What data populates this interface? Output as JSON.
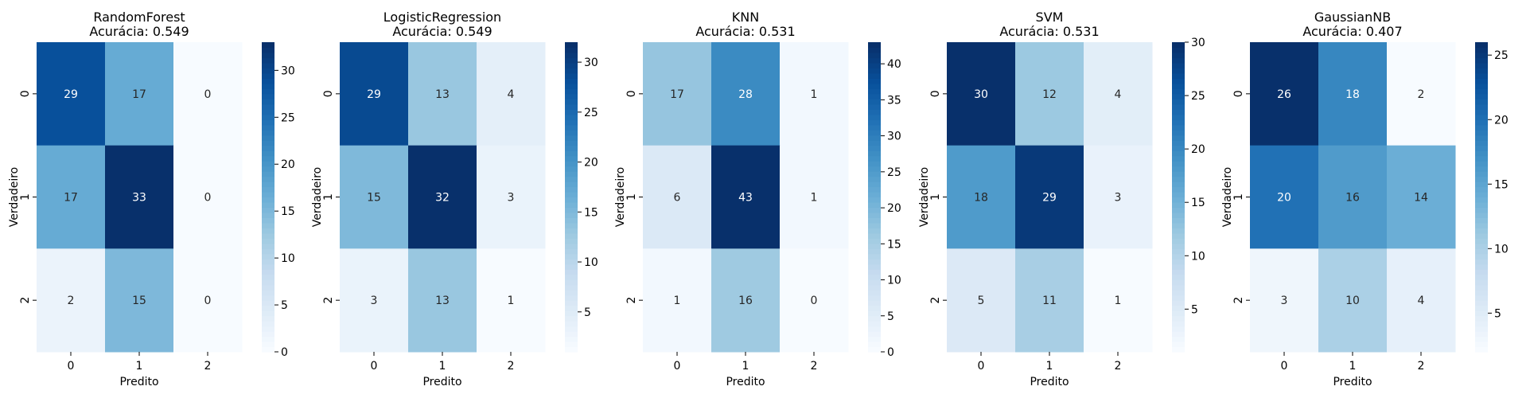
{
  "chart_data": [
    {
      "type": "heatmap",
      "title_line1": "RandomForest",
      "title_line2": "Acurácia: 0.549",
      "xlabel": "Predito",
      "ylabel": "Verdadeiro",
      "x_categories": [
        "0",
        "1",
        "2"
      ],
      "y_categories": [
        "0",
        "1",
        "2"
      ],
      "values": [
        [
          29,
          17,
          0
        ],
        [
          17,
          33,
          0
        ],
        [
          2,
          15,
          0
        ]
      ],
      "vmin": 0,
      "vmax": 33,
      "colorbar_ticks": [
        0,
        5,
        10,
        15,
        20,
        25,
        30
      ]
    },
    {
      "type": "heatmap",
      "title_line1": "LogisticRegression",
      "title_line2": "Acurácia: 0.549",
      "xlabel": "Predito",
      "ylabel": "Verdadeiro",
      "x_categories": [
        "0",
        "1",
        "2"
      ],
      "y_categories": [
        "0",
        "1",
        "2"
      ],
      "values": [
        [
          29,
          13,
          4
        ],
        [
          15,
          32,
          3
        ],
        [
          3,
          13,
          1
        ]
      ],
      "vmin": 1,
      "vmax": 32,
      "colorbar_ticks": [
        5,
        10,
        15,
        20,
        25,
        30
      ]
    },
    {
      "type": "heatmap",
      "title_line1": "KNN",
      "title_line2": "Acurácia: 0.531",
      "xlabel": "Predito",
      "ylabel": "Verdadeiro",
      "x_categories": [
        "0",
        "1",
        "2"
      ],
      "y_categories": [
        "0",
        "1",
        "2"
      ],
      "values": [
        [
          17,
          28,
          1
        ],
        [
          6,
          43,
          1
        ],
        [
          1,
          16,
          0
        ]
      ],
      "vmin": 0,
      "vmax": 43,
      "colorbar_ticks": [
        0,
        5,
        10,
        15,
        20,
        25,
        30,
        35,
        40
      ]
    },
    {
      "type": "heatmap",
      "title_line1": "SVM",
      "title_line2": "Acurácia: 0.531",
      "xlabel": "Predito",
      "ylabel": "Verdadeiro",
      "x_categories": [
        "0",
        "1",
        "2"
      ],
      "y_categories": [
        "0",
        "1",
        "2"
      ],
      "values": [
        [
          30,
          12,
          4
        ],
        [
          18,
          29,
          3
        ],
        [
          5,
          11,
          1
        ]
      ],
      "vmin": 1,
      "vmax": 30,
      "colorbar_ticks": [
        5,
        10,
        15,
        20,
        25,
        30
      ]
    },
    {
      "type": "heatmap",
      "title_line1": "GaussianNB",
      "title_line2": "Acurácia: 0.407",
      "xlabel": "Predito",
      "ylabel": "Verdadeiro",
      "x_categories": [
        "0",
        "1",
        "2"
      ],
      "y_categories": [
        "0",
        "1",
        "2"
      ],
      "values": [
        [
          26,
          18,
          2
        ],
        [
          20,
          16,
          14
        ],
        [
          3,
          10,
          4
        ]
      ],
      "vmin": 2,
      "vmax": 26,
      "colorbar_ticks": [
        5,
        10,
        15,
        20,
        25
      ]
    }
  ],
  "colormap": "Blues",
  "colormap_stops": [
    "#f7fbff",
    "#deebf7",
    "#c6dbef",
    "#9ecae1",
    "#6baed6",
    "#4292c6",
    "#2171b5",
    "#08519c",
    "#08306b"
  ]
}
